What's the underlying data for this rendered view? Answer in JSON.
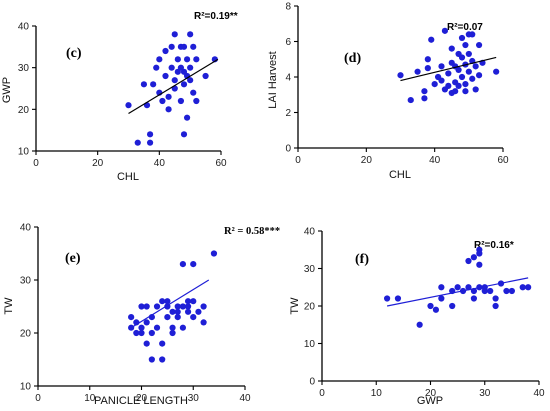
{
  "chart_data": [
    {
      "type": "scatter",
      "panel": "(c)",
      "r2": "R²=0.19**",
      "xlabel": "CHL",
      "ylabel": "GWP",
      "xlim": [
        0,
        60
      ],
      "ylim": [
        10,
        40
      ],
      "x_ticks": [
        0,
        20,
        40,
        60
      ],
      "y_ticks": [
        10,
        20,
        30,
        40
      ],
      "trend": {
        "color": "#000000",
        "x": [
          30,
          59
        ],
        "y": [
          19,
          32
        ]
      },
      "points": [
        [
          30,
          21
        ],
        [
          33,
          12
        ],
        [
          35,
          26
        ],
        [
          36,
          21
        ],
        [
          37,
          12
        ],
        [
          37,
          14
        ],
        [
          38,
          26
        ],
        [
          39,
          30
        ],
        [
          40,
          24
        ],
        [
          40,
          32
        ],
        [
          41,
          22
        ],
        [
          42,
          34
        ],
        [
          42,
          28
        ],
        [
          43,
          23
        ],
        [
          43,
          20
        ],
        [
          44,
          35
        ],
        [
          44,
          30
        ],
        [
          45,
          38
        ],
        [
          45,
          27
        ],
        [
          45,
          25
        ],
        [
          46,
          32
        ],
        [
          46,
          29
        ],
        [
          47,
          35
        ],
        [
          47,
          30
        ],
        [
          47,
          22
        ],
        [
          48,
          35
        ],
        [
          48,
          29
        ],
        [
          48,
          26
        ],
        [
          48,
          14
        ],
        [
          49,
          32
        ],
        [
          49,
          28
        ],
        [
          49,
          18
        ],
        [
          50,
          38
        ],
        [
          50,
          30
        ],
        [
          50,
          27
        ],
        [
          51,
          35
        ],
        [
          51,
          24
        ],
        [
          52,
          32
        ],
        [
          52,
          22
        ],
        [
          55,
          28
        ],
        [
          58,
          32
        ]
      ]
    },
    {
      "type": "scatter",
      "panel": "(d)",
      "r2": "R²=0.07",
      "xlabel": "CHL",
      "ylabel": "LAI Harvest",
      "xlim": [
        0,
        60
      ],
      "ylim": [
        0,
        8
      ],
      "x_ticks": [
        0,
        20,
        40,
        60
      ],
      "y_ticks": [
        0,
        2,
        4,
        6,
        8
      ],
      "trend": {
        "color": "#000000",
        "x": [
          30,
          58
        ],
        "y": [
          3.8,
          5.1
        ]
      },
      "points": [
        [
          30,
          4.1
        ],
        [
          33,
          2.7
        ],
        [
          35,
          4.3
        ],
        [
          37,
          3.2
        ],
        [
          37,
          2.8
        ],
        [
          38,
          5.0
        ],
        [
          38,
          4.5
        ],
        [
          39,
          6.1
        ],
        [
          40,
          3.6
        ],
        [
          41,
          4.0
        ],
        [
          42,
          4.6
        ],
        [
          42,
          3.8
        ],
        [
          43,
          6.6
        ],
        [
          43,
          3.3
        ],
        [
          44,
          4.2
        ],
        [
          44,
          3.5
        ],
        [
          45,
          5.6
        ],
        [
          45,
          3.1
        ],
        [
          45,
          4.8
        ],
        [
          46,
          4.6
        ],
        [
          46,
          3.7
        ],
        [
          46,
          3.2
        ],
        [
          47,
          5.3
        ],
        [
          47,
          4.4
        ],
        [
          47,
          3.5
        ],
        [
          48,
          6.2
        ],
        [
          48,
          5.1
        ],
        [
          48,
          4.0
        ],
        [
          49,
          5.8
        ],
        [
          49,
          4.7
        ],
        [
          49,
          3.6
        ],
        [
          49,
          3.2
        ],
        [
          50,
          6.4
        ],
        [
          50,
          5.3
        ],
        [
          50,
          4.3
        ],
        [
          51,
          6.4
        ],
        [
          51,
          4.9
        ],
        [
          51,
          3.9
        ],
        [
          52,
          4.6
        ],
        [
          52,
          3.3
        ],
        [
          53,
          5.8
        ],
        [
          53,
          4.1
        ],
        [
          54,
          4.8
        ],
        [
          58,
          4.3
        ]
      ]
    },
    {
      "type": "scatter",
      "panel": "(e)",
      "r2": "R² = 0.58***",
      "xlabel": "PANICLE LENGTH",
      "ylabel": "TW",
      "xlim": [
        0,
        40
      ],
      "ylim": [
        10,
        40
      ],
      "x_ticks": [
        0,
        10,
        20,
        30,
        40
      ],
      "y_ticks": [
        10,
        20,
        30,
        40
      ],
      "trend": {
        "color": "#1f1fd6",
        "x": [
          18,
          33
        ],
        "y": [
          21,
          30
        ]
      },
      "points": [
        [
          18,
          21
        ],
        [
          18,
          23
        ],
        [
          19,
          20
        ],
        [
          19,
          22
        ],
        [
          20,
          25
        ],
        [
          20,
          21
        ],
        [
          20,
          20
        ],
        [
          21,
          25
        ],
        [
          21,
          22
        ],
        [
          21,
          18
        ],
        [
          22,
          15
        ],
        [
          22,
          20
        ],
        [
          22,
          23
        ],
        [
          23,
          25
        ],
        [
          23,
          21
        ],
        [
          24,
          26
        ],
        [
          24,
          18
        ],
        [
          24,
          15
        ],
        [
          25,
          23
        ],
        [
          25,
          25
        ],
        [
          25,
          26
        ],
        [
          26,
          24
        ],
        [
          26,
          21
        ],
        [
          26,
          20
        ],
        [
          27,
          25
        ],
        [
          27,
          23
        ],
        [
          27,
          24
        ],
        [
          28,
          33
        ],
        [
          28,
          25
        ],
        [
          28,
          21
        ],
        [
          29,
          26
        ],
        [
          29,
          25
        ],
        [
          29,
          24
        ],
        [
          30,
          33
        ],
        [
          30,
          23
        ],
        [
          30,
          26
        ],
        [
          31,
          24
        ],
        [
          32,
          25
        ],
        [
          32,
          22
        ],
        [
          34,
          35
        ]
      ]
    },
    {
      "type": "scatter",
      "panel": "(f)",
      "r2": "R²=0.16*",
      "xlabel": "GWP",
      "ylabel": "TW",
      "xlim": [
        0,
        40
      ],
      "ylim": [
        0,
        40
      ],
      "x_ticks": [
        0,
        10,
        20,
        30,
        40
      ],
      "y_ticks": [
        0,
        10,
        20,
        30,
        40
      ],
      "trend": {
        "color": "#1f1fd6",
        "x": [
          12,
          38
        ],
        "y": [
          20,
          27.5
        ]
      },
      "points": [
        [
          12,
          22
        ],
        [
          14,
          22
        ],
        [
          18,
          15
        ],
        [
          20,
          20
        ],
        [
          21,
          19
        ],
        [
          22,
          25
        ],
        [
          22,
          22
        ],
        [
          24,
          24
        ],
        [
          24,
          20
        ],
        [
          25,
          25
        ],
        [
          26,
          24
        ],
        [
          27,
          25
        ],
        [
          27,
          32
        ],
        [
          28,
          33
        ],
        [
          28,
          24
        ],
        [
          28,
          22
        ],
        [
          29,
          35
        ],
        [
          29,
          34
        ],
        [
          29,
          31
        ],
        [
          29,
          25
        ],
        [
          30,
          25
        ],
        [
          30,
          24
        ],
        [
          31,
          24
        ],
        [
          32,
          22
        ],
        [
          32,
          20
        ],
        [
          33,
          26
        ],
        [
          34,
          24
        ],
        [
          35,
          24
        ],
        [
          37,
          25
        ],
        [
          38,
          25
        ]
      ]
    }
  ]
}
